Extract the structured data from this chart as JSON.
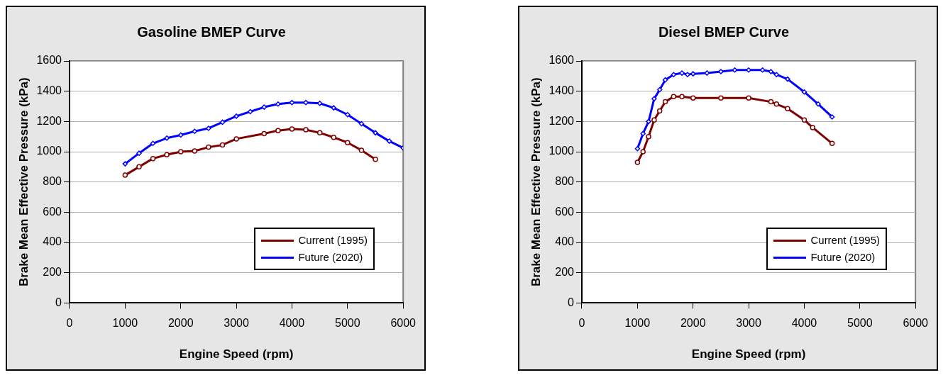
{
  "chart_data": [
    {
      "type": "line",
      "title": "Gasoline BMEP Curve",
      "xlabel": "Engine Speed (rpm)",
      "ylabel": "Brake Mean Effective Pressure (kPa)",
      "xlim": [
        0,
        6000
      ],
      "xticks": [
        0,
        1000,
        2000,
        3000,
        4000,
        5000,
        6000
      ],
      "ylim": [
        0,
        1600
      ],
      "yticks": [
        0,
        200,
        400,
        600,
        800,
        1000,
        1200,
        1400,
        1600
      ],
      "grid": "y",
      "legend": "bottom right",
      "line_style": "solid",
      "series": [
        {
          "name": "Current (1995)",
          "color": "#800000",
          "marker": "circle",
          "x": [
            1000,
            1250,
            1500,
            1750,
            2000,
            2250,
            2500,
            2750,
            3000,
            3500,
            3750,
            4000,
            4250,
            4500,
            4750,
            5000,
            5250,
            5500
          ],
          "values": [
            845,
            900,
            955,
            980,
            1000,
            1005,
            1030,
            1045,
            1085,
            1120,
            1140,
            1150,
            1145,
            1125,
            1095,
            1060,
            1010,
            950
          ]
        },
        {
          "name": "Future (2020)",
          "color": "#0000ff",
          "marker": "diamond",
          "x": [
            1000,
            1250,
            1500,
            1750,
            2000,
            2250,
            2500,
            2750,
            3000,
            3250,
            3500,
            3750,
            4000,
            4250,
            4500,
            4750,
            5000,
            5250,
            5500,
            5750,
            6000
          ],
          "values": [
            920,
            990,
            1055,
            1090,
            1110,
            1135,
            1155,
            1195,
            1235,
            1265,
            1295,
            1315,
            1325,
            1325,
            1320,
            1290,
            1245,
            1185,
            1125,
            1070,
            1025
          ]
        }
      ]
    },
    {
      "type": "line",
      "title": "Diesel BMEP Curve",
      "xlabel": "Engine Speed (rpm)",
      "ylabel": "Brake Mean Effective Pressure (kPa)",
      "xlim": [
        0,
        6000
      ],
      "xticks": [
        0,
        1000,
        2000,
        3000,
        4000,
        5000,
        6000
      ],
      "ylim": [
        0,
        1600
      ],
      "yticks": [
        0,
        200,
        400,
        600,
        800,
        1000,
        1200,
        1400,
        1600
      ],
      "grid": "y",
      "legend": "bottom right",
      "line_style": "solid",
      "series": [
        {
          "name": "Current (1995)",
          "color": "#800000",
          "marker": "circle",
          "x": [
            1000,
            1100,
            1200,
            1300,
            1400,
            1500,
            1650,
            1800,
            2000,
            2500,
            3000,
            3400,
            3500,
            3700,
            4000,
            4150,
            4500
          ],
          "values": [
            930,
            1000,
            1100,
            1210,
            1270,
            1330,
            1365,
            1365,
            1355,
            1355,
            1355,
            1330,
            1315,
            1285,
            1210,
            1160,
            1055
          ]
        },
        {
          "name": "Future (2020)",
          "color": "#0000ff",
          "marker": "diamond",
          "x": [
            1000,
            1100,
            1200,
            1300,
            1400,
            1500,
            1650,
            1800,
            1900,
            2000,
            2250,
            2500,
            2750,
            3000,
            3250,
            3400,
            3500,
            3700,
            4000,
            4250,
            4500
          ],
          "values": [
            1020,
            1120,
            1200,
            1350,
            1410,
            1475,
            1510,
            1520,
            1510,
            1515,
            1520,
            1530,
            1540,
            1540,
            1540,
            1530,
            1510,
            1480,
            1395,
            1315,
            1230
          ]
        }
      ]
    }
  ]
}
